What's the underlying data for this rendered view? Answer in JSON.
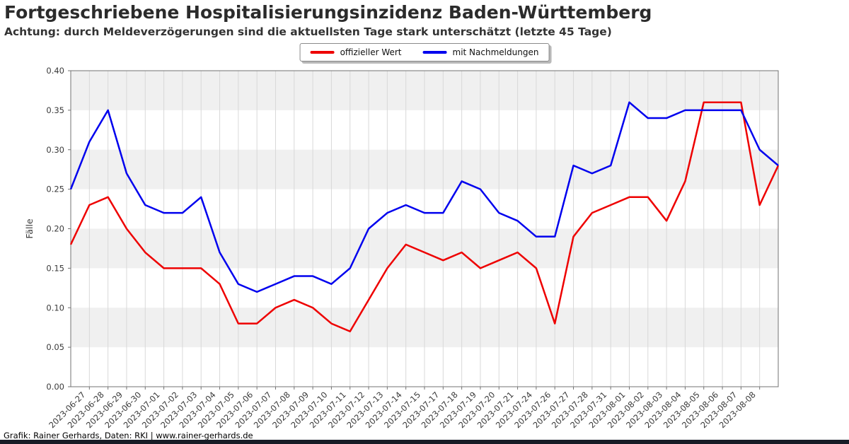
{
  "header": {
    "title": "Fortgeschriebene Hospitalisierungsinzidenz Baden-Württemberg",
    "subtitle": "Achtung: durch Meldeverzögerungen sind die aktuellsten Tage stark unterschätzt (letzte 45 Tage)"
  },
  "legend": {
    "items": [
      {
        "label": "offizieller Wert",
        "color": "#ee0000"
      },
      {
        "label": "mit Nachmeldungen",
        "color": "#0000ee"
      }
    ]
  },
  "footer": {
    "credit": "Grafik: Rainer Gerhards, Daten: RKI | www.rainer-gerhards.de"
  },
  "chart_data": {
    "type": "line",
    "title": "Fortgeschriebene Hospitalisierungsinzidenz Baden-Württemberg",
    "xlabel": "",
    "ylabel": "Fälle",
    "ylim": [
      0.0,
      0.4
    ],
    "ytick_step": 0.05,
    "grid": "vertical",
    "legend_position": "top-center",
    "band_color": "#f0f0f0",
    "grid_color": "#d8d8d8",
    "spine_color": "#737373",
    "tick_label_color": "#3a3a3a",
    "categories": [
      "",
      "2023-06-27",
      "2023-06-28",
      "2023-06-29",
      "2023-06-30",
      "2023-07-01",
      "2023-07-02",
      "2023-07-03",
      "2023-07-04",
      "2023-07-05",
      "2023-07-06",
      "2023-07-07",
      "2023-07-08",
      "2023-07-09",
      "2023-07-10",
      "2023-07-11",
      "2023-07-12",
      "2023-07-13",
      "2023-07-14",
      "2023-07-15",
      "2023-07-17",
      "2023-07-18",
      "2023-07-19",
      "2023-07-20",
      "2023-07-21",
      "2023-07-24",
      "2023-07-26",
      "2023-07-27",
      "2023-07-28",
      "2023-07-31",
      "2023-08-01",
      "2023-08-02",
      "2023-08-03",
      "2023-08-04",
      "2023-08-05",
      "2023-08-06",
      "2023-08-07",
      "2023-08-08",
      ""
    ],
    "series": [
      {
        "name": "offizieller Wert",
        "color": "#ee0000",
        "values": [
          0.18,
          0.23,
          0.24,
          0.2,
          0.17,
          0.15,
          0.15,
          0.15,
          0.13,
          0.08,
          0.08,
          0.1,
          0.11,
          0.1,
          0.08,
          0.07,
          0.11,
          0.15,
          0.18,
          0.17,
          0.16,
          0.17,
          0.15,
          0.16,
          0.17,
          0.15,
          0.08,
          0.19,
          0.22,
          0.23,
          0.24,
          0.24,
          0.21,
          0.26,
          0.36,
          0.36,
          0.36,
          0.23,
          0.28
        ]
      },
      {
        "name": "mit Nachmeldungen",
        "color": "#0000ee",
        "values": [
          0.25,
          0.31,
          0.35,
          0.27,
          0.23,
          0.22,
          0.22,
          0.24,
          0.17,
          0.13,
          0.12,
          0.13,
          0.14,
          0.14,
          0.13,
          0.15,
          0.2,
          0.22,
          0.23,
          0.22,
          0.22,
          0.26,
          0.25,
          0.22,
          0.21,
          0.19,
          0.19,
          0.28,
          0.27,
          0.28,
          0.36,
          0.34,
          0.34,
          0.35,
          0.35,
          0.35,
          0.35,
          0.3,
          0.28
        ]
      }
    ]
  }
}
